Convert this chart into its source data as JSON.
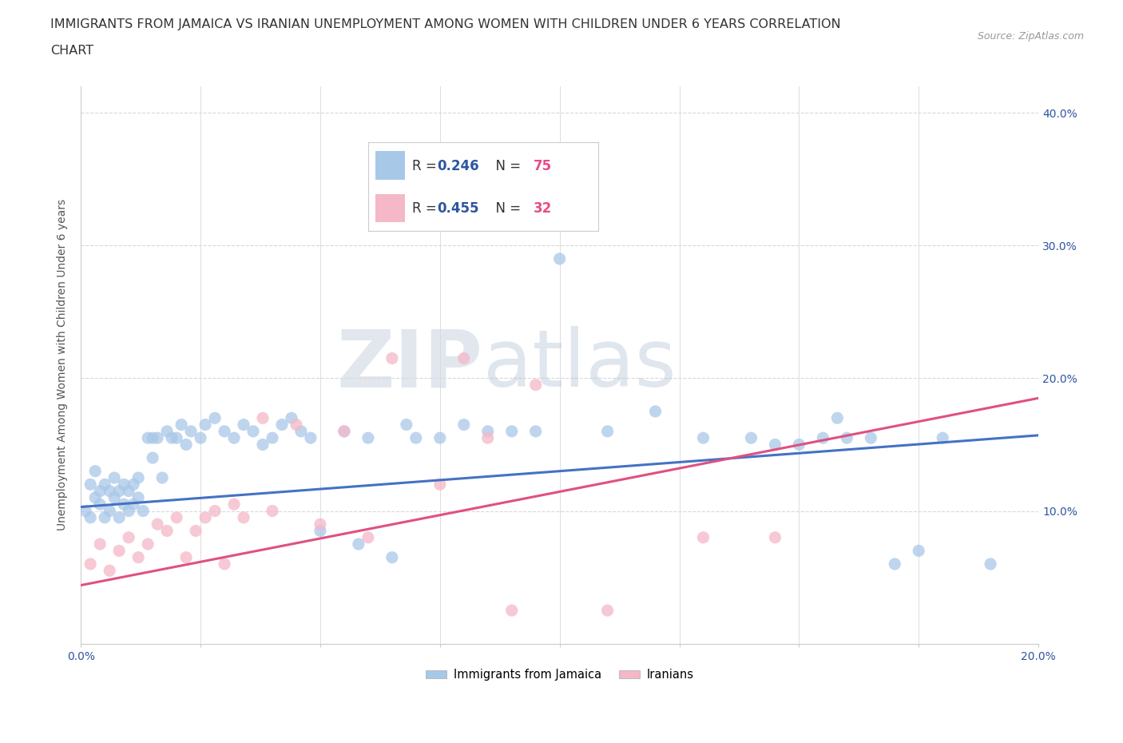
{
  "title_line1": "IMMIGRANTS FROM JAMAICA VS IRANIAN UNEMPLOYMENT AMONG WOMEN WITH CHILDREN UNDER 6 YEARS CORRELATION",
  "title_line2": "CHART",
  "source": "Source: ZipAtlas.com",
  "ylabel": "Unemployment Among Women with Children Under 6 years",
  "xlim": [
    0.0,
    0.2
  ],
  "ylim": [
    0.0,
    0.42
  ],
  "xticks": [
    0.0,
    0.025,
    0.05,
    0.075,
    0.1,
    0.125,
    0.15,
    0.175,
    0.2
  ],
  "xtick_labels": [
    "0.0%",
    "",
    "",
    "",
    "",
    "",
    "",
    "",
    "20.0%"
  ],
  "yticks": [
    0.0,
    0.1,
    0.2,
    0.3,
    0.4
  ],
  "ytick_labels_right": [
    "",
    "10.0%",
    "20.0%",
    "30.0%",
    "40.0%"
  ],
  "jamaica_color": "#a8c8e8",
  "iranian_color": "#f4b8c8",
  "jamaica_line_color": "#4472c4",
  "iranian_line_color": "#e05080",
  "jamaica_R": 0.246,
  "jamaica_N": 75,
  "iranian_R": 0.455,
  "iranian_N": 32,
  "legend_text_color": "#1a1a2e",
  "legend_val_color": "#2e55a0",
  "legend_n_color": "#e84b8a",
  "watermark_zip": "ZIP",
  "watermark_atlas": "atlas",
  "bg_color": "#ffffff",
  "grid_color": "#d8d8d8",
  "title_fontsize": 11.5,
  "axis_label_fontsize": 10,
  "tick_label_fontsize": 10,
  "jamaica_x": [
    0.001,
    0.002,
    0.002,
    0.003,
    0.003,
    0.004,
    0.004,
    0.005,
    0.005,
    0.006,
    0.006,
    0.007,
    0.007,
    0.008,
    0.008,
    0.009,
    0.009,
    0.01,
    0.01,
    0.011,
    0.011,
    0.012,
    0.012,
    0.013,
    0.014,
    0.015,
    0.015,
    0.016,
    0.017,
    0.018,
    0.019,
    0.02,
    0.021,
    0.022,
    0.023,
    0.025,
    0.026,
    0.028,
    0.03,
    0.032,
    0.034,
    0.036,
    0.038,
    0.04,
    0.042,
    0.044,
    0.046,
    0.048,
    0.05,
    0.055,
    0.058,
    0.06,
    0.065,
    0.068,
    0.07,
    0.075,
    0.08,
    0.085,
    0.09,
    0.095,
    0.1,
    0.11,
    0.12,
    0.13,
    0.14,
    0.145,
    0.15,
    0.155,
    0.158,
    0.16,
    0.165,
    0.17,
    0.175,
    0.18,
    0.19
  ],
  "jamaica_y": [
    0.1,
    0.12,
    0.095,
    0.11,
    0.13,
    0.105,
    0.115,
    0.095,
    0.12,
    0.1,
    0.115,
    0.11,
    0.125,
    0.095,
    0.115,
    0.105,
    0.12,
    0.1,
    0.115,
    0.105,
    0.12,
    0.11,
    0.125,
    0.1,
    0.155,
    0.155,
    0.14,
    0.155,
    0.125,
    0.16,
    0.155,
    0.155,
    0.165,
    0.15,
    0.16,
    0.155,
    0.165,
    0.17,
    0.16,
    0.155,
    0.165,
    0.16,
    0.15,
    0.155,
    0.165,
    0.17,
    0.16,
    0.155,
    0.085,
    0.16,
    0.075,
    0.155,
    0.065,
    0.165,
    0.155,
    0.155,
    0.165,
    0.16,
    0.16,
    0.16,
    0.29,
    0.16,
    0.175,
    0.155,
    0.155,
    0.15,
    0.15,
    0.155,
    0.17,
    0.155,
    0.155,
    0.06,
    0.07,
    0.155,
    0.06
  ],
  "iranian_x": [
    0.002,
    0.004,
    0.006,
    0.008,
    0.01,
    0.012,
    0.014,
    0.016,
    0.018,
    0.02,
    0.022,
    0.024,
    0.026,
    0.028,
    0.03,
    0.032,
    0.034,
    0.038,
    0.04,
    0.045,
    0.05,
    0.055,
    0.06,
    0.065,
    0.075,
    0.08,
    0.085,
    0.09,
    0.095,
    0.11,
    0.13,
    0.145
  ],
  "iranian_y": [
    0.06,
    0.075,
    0.055,
    0.07,
    0.08,
    0.065,
    0.075,
    0.09,
    0.085,
    0.095,
    0.065,
    0.085,
    0.095,
    0.1,
    0.06,
    0.105,
    0.095,
    0.17,
    0.1,
    0.165,
    0.09,
    0.16,
    0.08,
    0.215,
    0.12,
    0.215,
    0.155,
    0.025,
    0.195,
    0.025,
    0.08,
    0.08
  ]
}
